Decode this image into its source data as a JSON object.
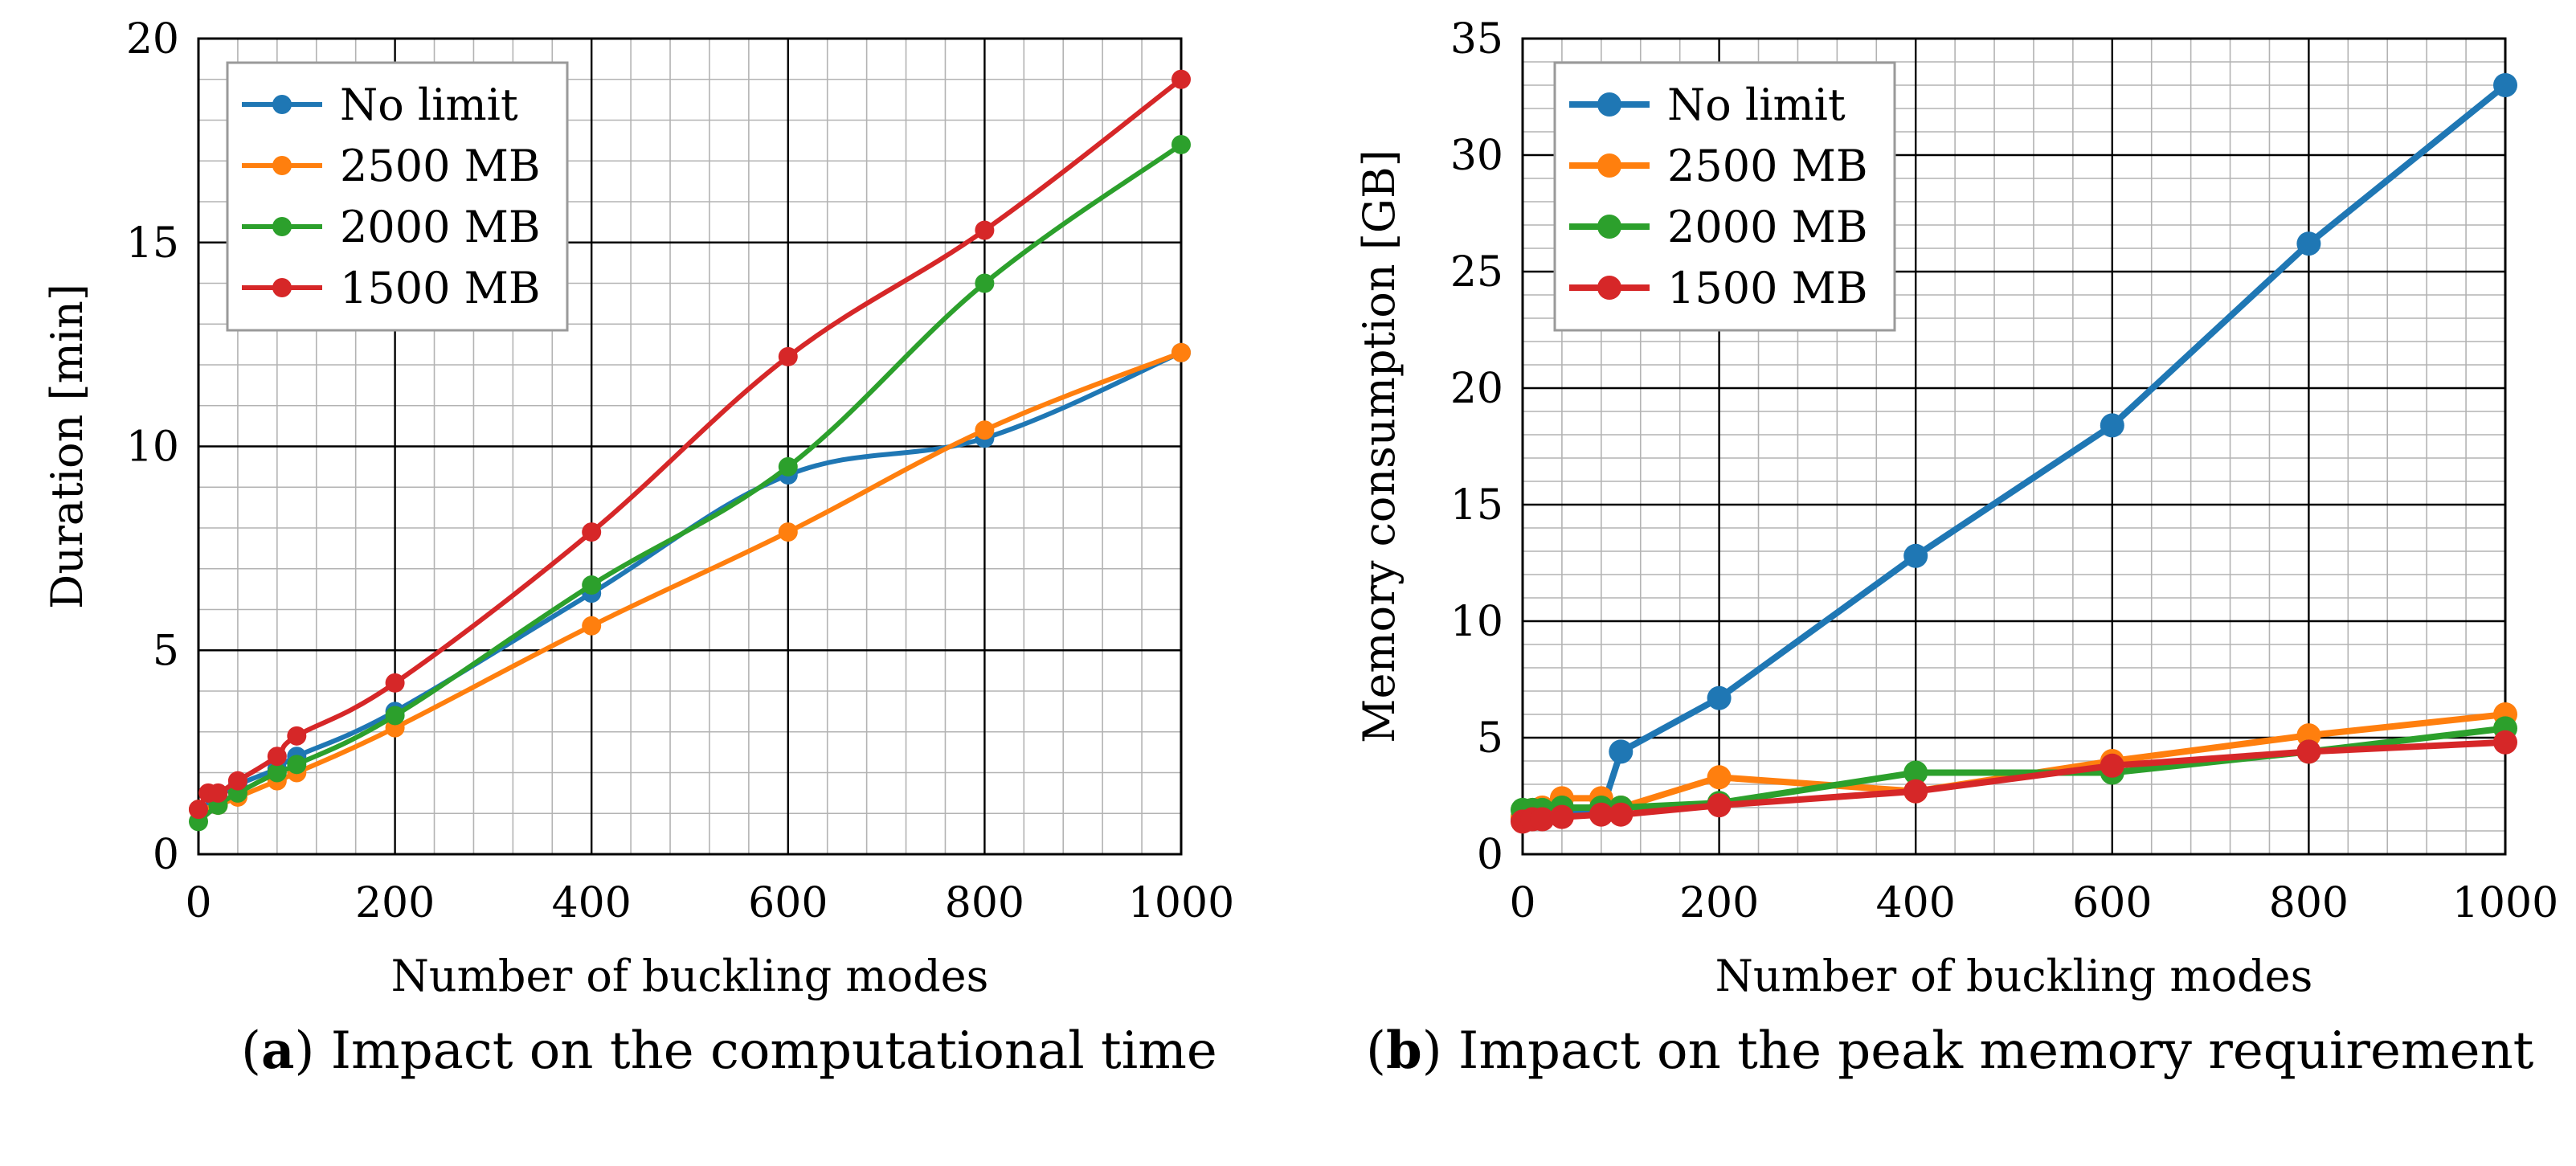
{
  "chart_data": [
    {
      "type": "line",
      "title": "",
      "xlabel": "Number of buckling modes",
      "ylabel": "Duration [min]",
      "xlim": [
        0,
        1000
      ],
      "ylim": [
        0,
        20
      ],
      "xticks": [
        "0",
        "200",
        "400",
        "600",
        "800",
        "1000"
      ],
      "yticks": [
        "0",
        "5",
        "10",
        "15",
        "20"
      ],
      "grid": true,
      "legend": "top-left",
      "caption": {
        "letter": "a",
        "text": "Impact on the computational time"
      },
      "series": [
        {
          "name": "No limit",
          "color": "#1f77b4",
          "x": [
            0,
            20,
            40,
            80,
            100,
            200,
            400,
            600,
            800,
            1000
          ],
          "y": [
            1.1,
            1.4,
            1.7,
            2.1,
            2.4,
            3.5,
            6.4,
            9.3,
            10.2,
            12.3
          ]
        },
        {
          "name": "2500 MB",
          "color": "#ff7f0e",
          "x": [
            0,
            20,
            40,
            80,
            100,
            200,
            400,
            600,
            800,
            1000
          ],
          "y": [
            1.1,
            1.2,
            1.4,
            1.8,
            2.0,
            3.1,
            5.6,
            7.9,
            10.4,
            12.3
          ]
        },
        {
          "name": "2000 MB",
          "color": "#2ca02c",
          "x": [
            0,
            20,
            40,
            80,
            100,
            200,
            400,
            600,
            800,
            1000
          ],
          "y": [
            0.8,
            1.2,
            1.5,
            2.0,
            2.2,
            3.4,
            6.6,
            9.5,
            14.0,
            17.4
          ]
        },
        {
          "name": "1500 MB",
          "color": "#d62728",
          "x": [
            0,
            10,
            20,
            40,
            80,
            100,
            200,
            400,
            600,
            800,
            1000
          ],
          "y": [
            1.1,
            1.5,
            1.5,
            1.8,
            2.4,
            2.9,
            4.2,
            7.9,
            12.2,
            15.3,
            19.0
          ]
        }
      ]
    },
    {
      "type": "line",
      "title": "",
      "xlabel": "Number of buckling modes",
      "ylabel": "Memory consumption [GB]",
      "xlim": [
        0,
        1000
      ],
      "ylim": [
        0,
        35
      ],
      "xticks": [
        "0",
        "200",
        "400",
        "600",
        "800",
        "1000"
      ],
      "yticks": [
        "0",
        "5",
        "10",
        "15",
        "20",
        "25",
        "30",
        "35"
      ],
      "grid": true,
      "legend": "top-left",
      "caption": {
        "letter": "b",
        "text": "Impact on the peak memory requirement"
      },
      "series": [
        {
          "name": "No limit",
          "color": "#1f77b4",
          "x": [
            0,
            10,
            20,
            40,
            80,
            100,
            200,
            400,
            600,
            800,
            1000
          ],
          "y": [
            1.5,
            1.6,
            1.6,
            1.7,
            1.8,
            4.4,
            6.7,
            12.8,
            18.4,
            26.2,
            33.0
          ]
        },
        {
          "name": "2500 MB",
          "color": "#ff7f0e",
          "x": [
            0,
            10,
            20,
            40,
            80,
            100,
            200,
            400,
            600,
            800,
            1000
          ],
          "y": [
            1.6,
            1.9,
            2.0,
            2.4,
            2.4,
            2.0,
            3.3,
            2.7,
            4.0,
            5.1,
            6.0
          ]
        },
        {
          "name": "2000 MB",
          "color": "#2ca02c",
          "x": [
            0,
            10,
            20,
            40,
            80,
            100,
            200,
            400,
            600,
            800,
            1000
          ],
          "y": [
            1.9,
            1.9,
            1.9,
            2.0,
            2.0,
            2.0,
            2.2,
            3.5,
            3.5,
            4.4,
            5.4
          ]
        },
        {
          "name": "1500 MB",
          "color": "#d62728",
          "x": [
            0,
            10,
            20,
            40,
            80,
            100,
            200,
            400,
            600,
            800,
            1000
          ],
          "y": [
            1.4,
            1.5,
            1.5,
            1.6,
            1.7,
            1.7,
            2.1,
            2.7,
            3.8,
            4.4,
            4.8
          ]
        }
      ]
    }
  ]
}
